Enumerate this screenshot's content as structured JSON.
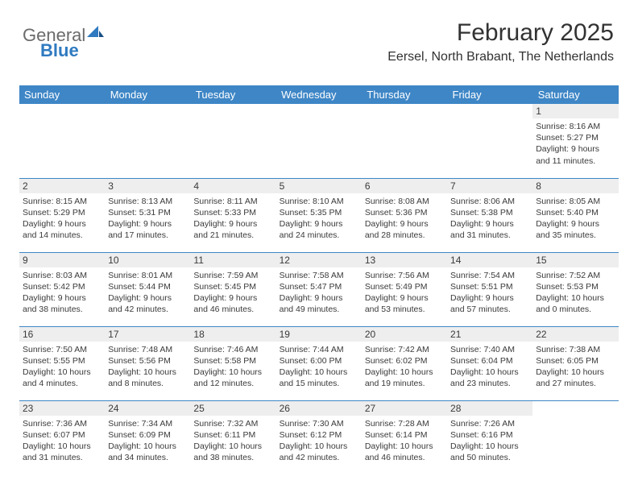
{
  "logo": {
    "general": "General",
    "blue": "Blue"
  },
  "title": "February 2025",
  "location": "Eersel, North Brabant, The Netherlands",
  "colors": {
    "header_bg": "#3e86c6",
    "header_text": "#ffffff",
    "daynum_bg": "#eeeeee",
    "rule": "#3e86c6",
    "text": "#323232",
    "logo_gray": "#6b6b6b",
    "logo_blue": "#2f7ac0"
  },
  "weekdays": [
    "Sunday",
    "Monday",
    "Tuesday",
    "Wednesday",
    "Thursday",
    "Friday",
    "Saturday"
  ],
  "grid": {
    "first_weekday_index": 6,
    "days_in_month": 28
  },
  "days": [
    {
      "n": 1,
      "sunrise": "8:16 AM",
      "sunset": "5:27 PM",
      "daylight": "9 hours and 11 minutes."
    },
    {
      "n": 2,
      "sunrise": "8:15 AM",
      "sunset": "5:29 PM",
      "daylight": "9 hours and 14 minutes."
    },
    {
      "n": 3,
      "sunrise": "8:13 AM",
      "sunset": "5:31 PM",
      "daylight": "9 hours and 17 minutes."
    },
    {
      "n": 4,
      "sunrise": "8:11 AM",
      "sunset": "5:33 PM",
      "daylight": "9 hours and 21 minutes."
    },
    {
      "n": 5,
      "sunrise": "8:10 AM",
      "sunset": "5:35 PM",
      "daylight": "9 hours and 24 minutes."
    },
    {
      "n": 6,
      "sunrise": "8:08 AM",
      "sunset": "5:36 PM",
      "daylight": "9 hours and 28 minutes."
    },
    {
      "n": 7,
      "sunrise": "8:06 AM",
      "sunset": "5:38 PM",
      "daylight": "9 hours and 31 minutes."
    },
    {
      "n": 8,
      "sunrise": "8:05 AM",
      "sunset": "5:40 PM",
      "daylight": "9 hours and 35 minutes."
    },
    {
      "n": 9,
      "sunrise": "8:03 AM",
      "sunset": "5:42 PM",
      "daylight": "9 hours and 38 minutes."
    },
    {
      "n": 10,
      "sunrise": "8:01 AM",
      "sunset": "5:44 PM",
      "daylight": "9 hours and 42 minutes."
    },
    {
      "n": 11,
      "sunrise": "7:59 AM",
      "sunset": "5:45 PM",
      "daylight": "9 hours and 46 minutes."
    },
    {
      "n": 12,
      "sunrise": "7:58 AM",
      "sunset": "5:47 PM",
      "daylight": "9 hours and 49 minutes."
    },
    {
      "n": 13,
      "sunrise": "7:56 AM",
      "sunset": "5:49 PM",
      "daylight": "9 hours and 53 minutes."
    },
    {
      "n": 14,
      "sunrise": "7:54 AM",
      "sunset": "5:51 PM",
      "daylight": "9 hours and 57 minutes."
    },
    {
      "n": 15,
      "sunrise": "7:52 AM",
      "sunset": "5:53 PM",
      "daylight": "10 hours and 0 minutes."
    },
    {
      "n": 16,
      "sunrise": "7:50 AM",
      "sunset": "5:55 PM",
      "daylight": "10 hours and 4 minutes."
    },
    {
      "n": 17,
      "sunrise": "7:48 AM",
      "sunset": "5:56 PM",
      "daylight": "10 hours and 8 minutes."
    },
    {
      "n": 18,
      "sunrise": "7:46 AM",
      "sunset": "5:58 PM",
      "daylight": "10 hours and 12 minutes."
    },
    {
      "n": 19,
      "sunrise": "7:44 AM",
      "sunset": "6:00 PM",
      "daylight": "10 hours and 15 minutes."
    },
    {
      "n": 20,
      "sunrise": "7:42 AM",
      "sunset": "6:02 PM",
      "daylight": "10 hours and 19 minutes."
    },
    {
      "n": 21,
      "sunrise": "7:40 AM",
      "sunset": "6:04 PM",
      "daylight": "10 hours and 23 minutes."
    },
    {
      "n": 22,
      "sunrise": "7:38 AM",
      "sunset": "6:05 PM",
      "daylight": "10 hours and 27 minutes."
    },
    {
      "n": 23,
      "sunrise": "7:36 AM",
      "sunset": "6:07 PM",
      "daylight": "10 hours and 31 minutes."
    },
    {
      "n": 24,
      "sunrise": "7:34 AM",
      "sunset": "6:09 PM",
      "daylight": "10 hours and 34 minutes."
    },
    {
      "n": 25,
      "sunrise": "7:32 AM",
      "sunset": "6:11 PM",
      "daylight": "10 hours and 38 minutes."
    },
    {
      "n": 26,
      "sunrise": "7:30 AM",
      "sunset": "6:12 PM",
      "daylight": "10 hours and 42 minutes."
    },
    {
      "n": 27,
      "sunrise": "7:28 AM",
      "sunset": "6:14 PM",
      "daylight": "10 hours and 46 minutes."
    },
    {
      "n": 28,
      "sunrise": "7:26 AM",
      "sunset": "6:16 PM",
      "daylight": "10 hours and 50 minutes."
    }
  ],
  "labels": {
    "sunrise": "Sunrise:",
    "sunset": "Sunset:",
    "daylight": "Daylight:"
  }
}
